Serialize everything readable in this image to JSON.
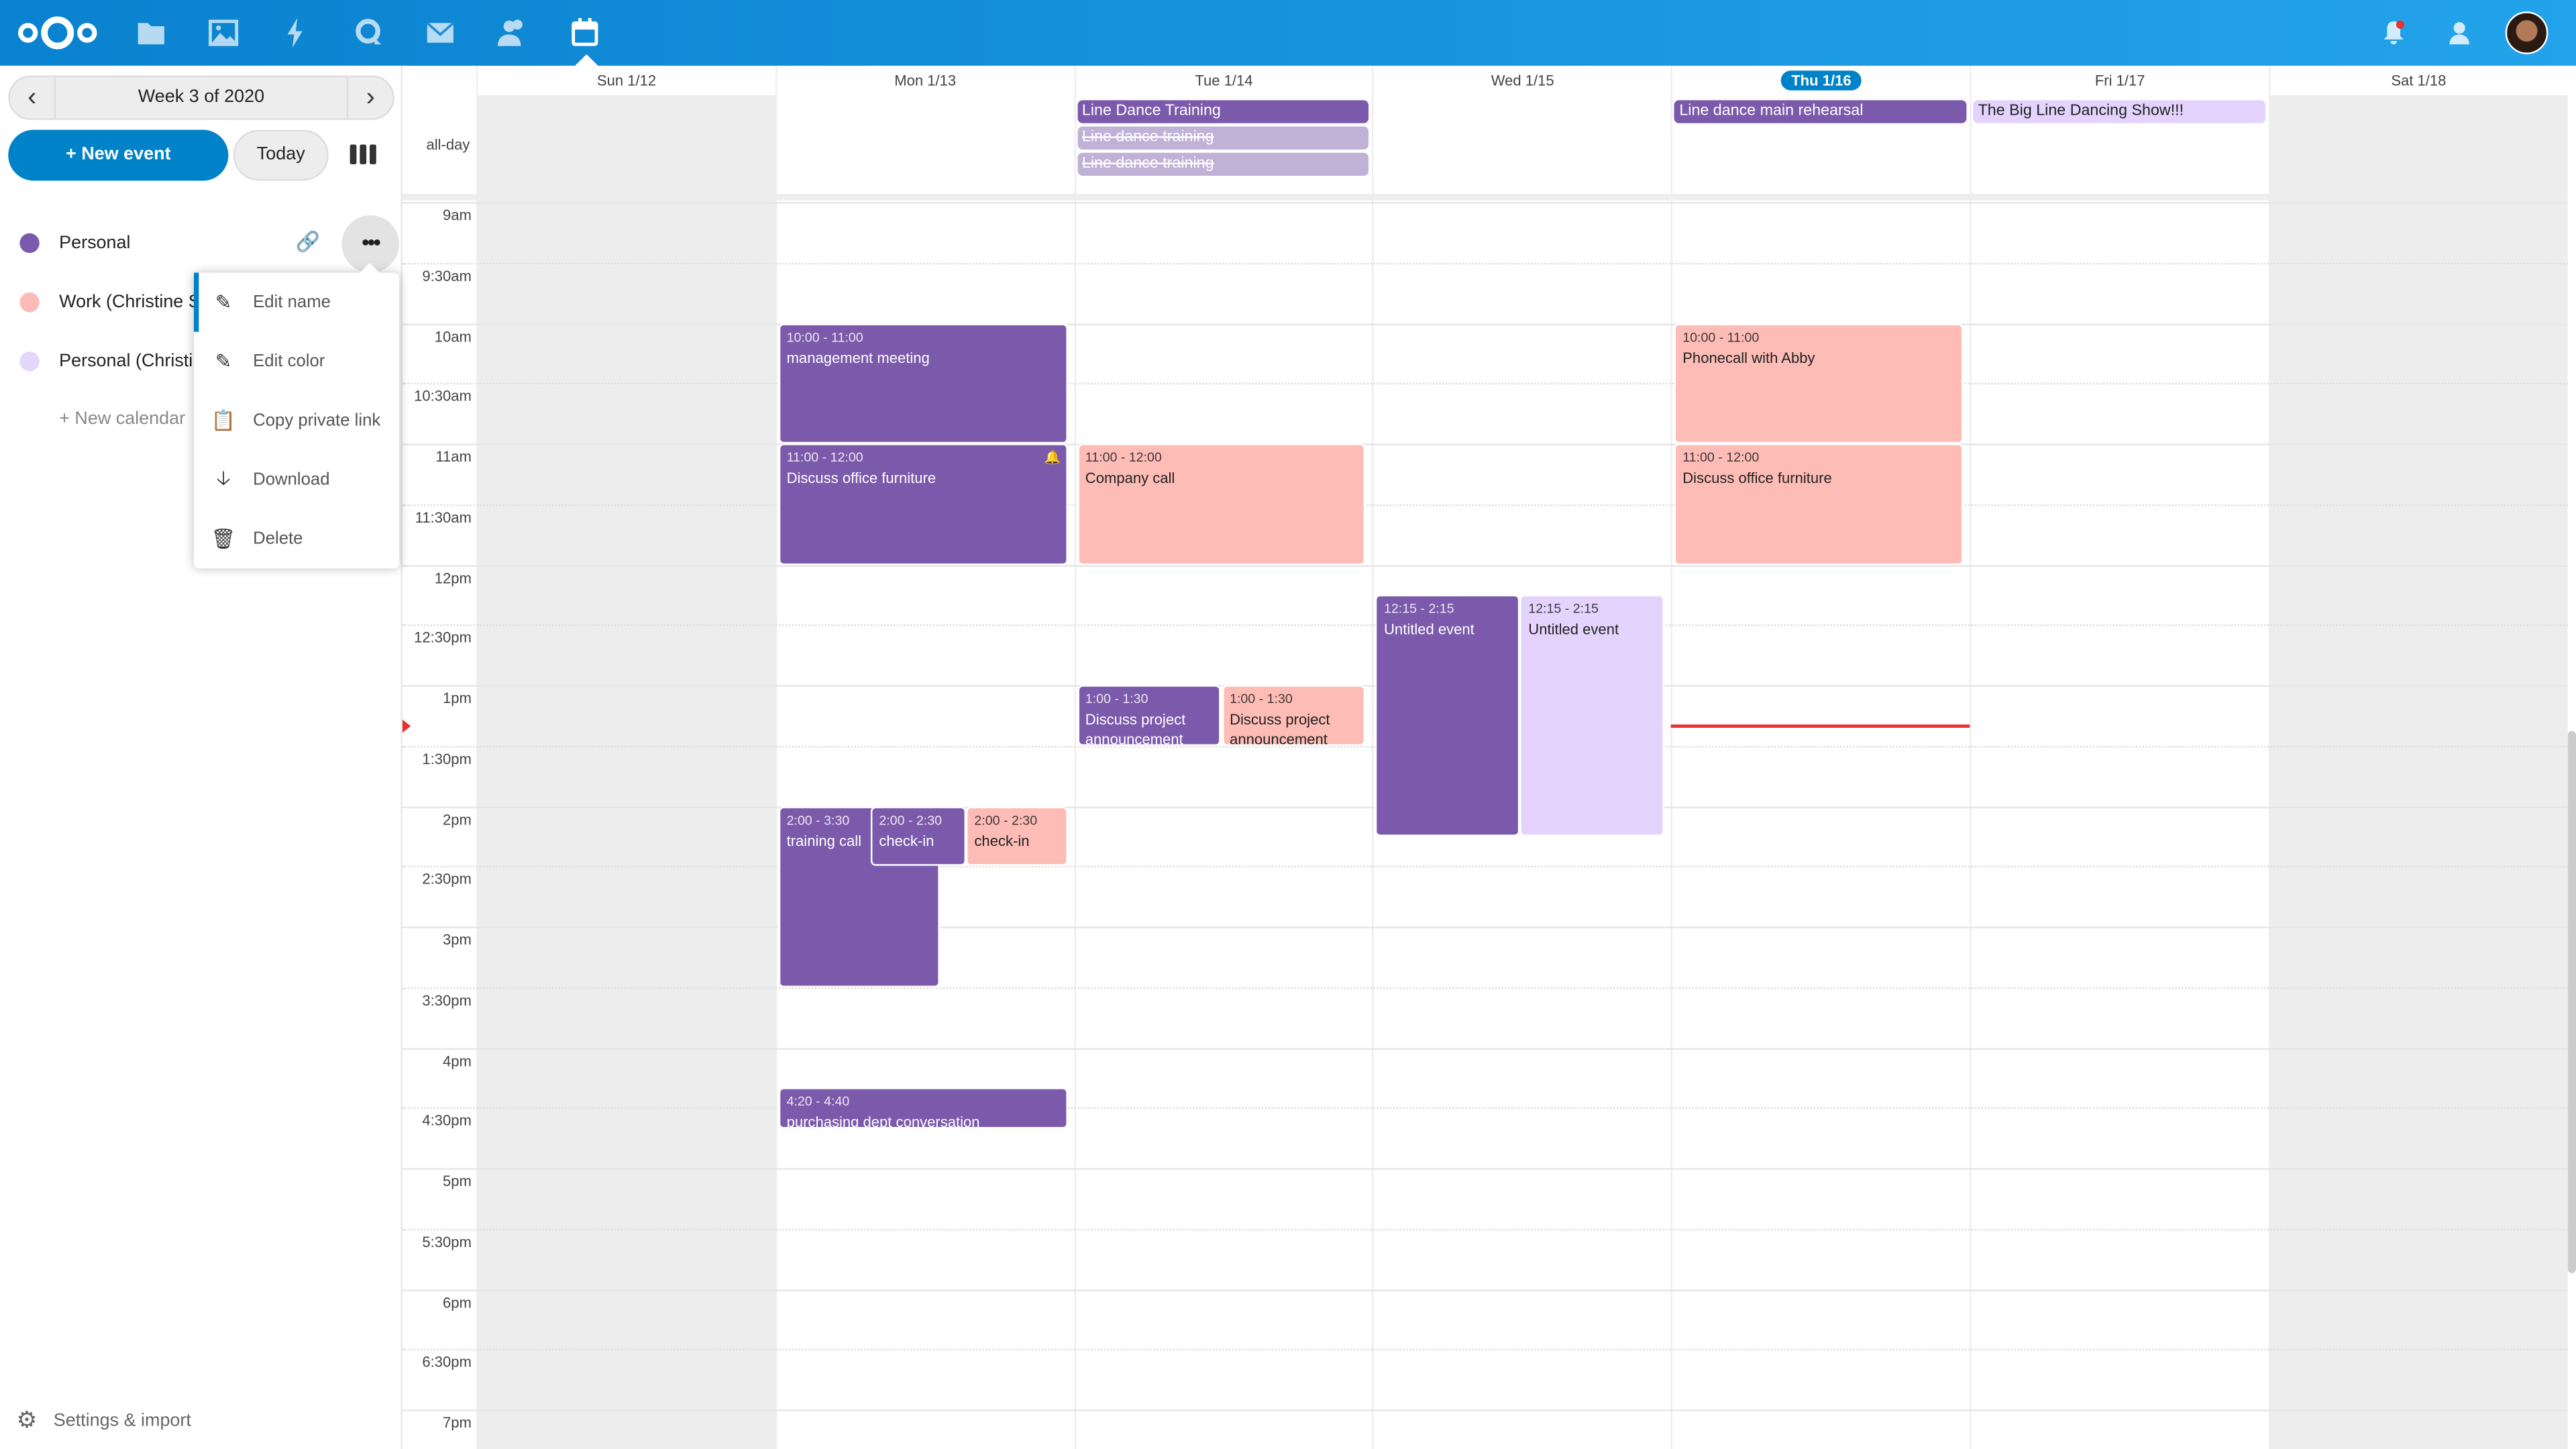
{
  "header": {
    "apps": [
      "files-icon",
      "photos-icon",
      "activity-icon",
      "talk-icon",
      "mail-icon",
      "contacts-icon",
      "calendar-icon"
    ],
    "active_app": "calendar-icon",
    "right": [
      "notifications-icon",
      "contacts-menu-icon",
      "user-avatar"
    ]
  },
  "sidebar": {
    "week_label": "Week 3 of 2020",
    "new_event": "+ New event",
    "today": "Today",
    "calendars": [
      {
        "name": "Personal",
        "color": "#7b5aab"
      },
      {
        "name": "Work (Christine Schott)",
        "color": "#fbbcb7"
      },
      {
        "name": "Personal (Christine Schott)",
        "color": "#e5d6fb"
      }
    ],
    "new_calendar": "+ New calendar",
    "settings": "Settings & import",
    "menu": [
      {
        "label": "Edit name",
        "icon": "pencil-icon"
      },
      {
        "label": "Edit color",
        "icon": "pencil-icon"
      },
      {
        "label": "Copy private link",
        "icon": "clipboard-icon"
      },
      {
        "label": "Download",
        "icon": "download-icon"
      },
      {
        "label": "Delete",
        "icon": "trash-icon"
      }
    ]
  },
  "calendar": {
    "days": [
      "Sun 1/12",
      "Mon 1/13",
      "Tue 1/14",
      "Wed 1/15",
      "Thu 1/16",
      "Fri 1/17",
      "Sat 1/18"
    ],
    "today_index": 4,
    "all_day_label": "all-day",
    "hours": [
      "9am",
      "9:30am",
      "10am",
      "10:30am",
      "11am",
      "11:30am",
      "12pm",
      "12:30pm",
      "1pm",
      "1:30pm",
      "2pm",
      "2:30pm",
      "3pm",
      "3:30pm",
      "4pm",
      "4:30pm",
      "5pm",
      "5:30pm",
      "6pm",
      "6:30pm",
      "7pm"
    ],
    "now_time": "1:20pm",
    "colors": {
      "purple": "#7b5aab",
      "pink": "#fdbcb6",
      "lavender": "#e3d3fd",
      "purple_faded": "#c0b1d6"
    },
    "all_day_events": [
      {
        "day": 2,
        "title": "Line Dance Training",
        "color": "purple"
      },
      {
        "day": 2,
        "title": "Line dance training",
        "color": "purple_faded",
        "struck": true
      },
      {
        "day": 2,
        "title": "Line dance training",
        "color": "purple_faded",
        "struck": true
      },
      {
        "day": 4,
        "title": "Line dance main rehearsal",
        "color": "purple"
      },
      {
        "day": 5,
        "title": "The Big Line Dancing Show!!!",
        "color": "lavender"
      }
    ],
    "events": [
      {
        "day": 1,
        "start": 10,
        "end": 11,
        "time": "10:00 - 11:00",
        "title": "management meeting",
        "color": "purple"
      },
      {
        "day": 1,
        "start": 11,
        "end": 12,
        "time": "11:00 - 12:00",
        "title": "Discuss office furniture",
        "color": "purple",
        "alarm": true
      },
      {
        "day": 1,
        "start": 14,
        "end": 15.5,
        "time": "2:00 - 3:30",
        "title": "training call",
        "color": "purple"
      },
      {
        "day": 1,
        "start": 14,
        "end": 14.5,
        "time": "2:00 - 2:30",
        "title": "check-in",
        "color": "purple"
      },
      {
        "day": 1,
        "start": 14,
        "end": 14.5,
        "time": "2:00 - 2:30",
        "title": "check-in",
        "color": "pink"
      },
      {
        "day": 1,
        "start": 16.333,
        "end": 16.667,
        "time": "4:20 - 4:40",
        "title": "purchasing dept conversation",
        "color": "purple"
      },
      {
        "day": 2,
        "start": 11,
        "end": 12,
        "time": "11:00 - 12:00",
        "title": "Company call",
        "color": "pink"
      },
      {
        "day": 2,
        "start": 13,
        "end": 13.5,
        "time": "1:00 - 1:30",
        "title": "Discuss project announcement",
        "color": "purple"
      },
      {
        "day": 2,
        "start": 13,
        "end": 13.5,
        "time": "1:00 - 1:30",
        "title": "Discuss project announcement",
        "color": "pink"
      },
      {
        "day": 3,
        "start": 12.25,
        "end": 14.25,
        "time": "12:15 - 2:15",
        "title": "Untitled event",
        "color": "purple"
      },
      {
        "day": 3,
        "start": 12.25,
        "end": 14.25,
        "time": "12:15 - 2:15",
        "title": "Untitled event",
        "color": "lavender"
      },
      {
        "day": 4,
        "start": 10,
        "end": 11,
        "time": "10:00 - 11:00",
        "title": "Phonecall with Abby",
        "color": "pink"
      },
      {
        "day": 4,
        "start": 11,
        "end": 12,
        "time": "11:00 - 12:00",
        "title": "Discuss office furniture",
        "color": "pink"
      }
    ]
  }
}
